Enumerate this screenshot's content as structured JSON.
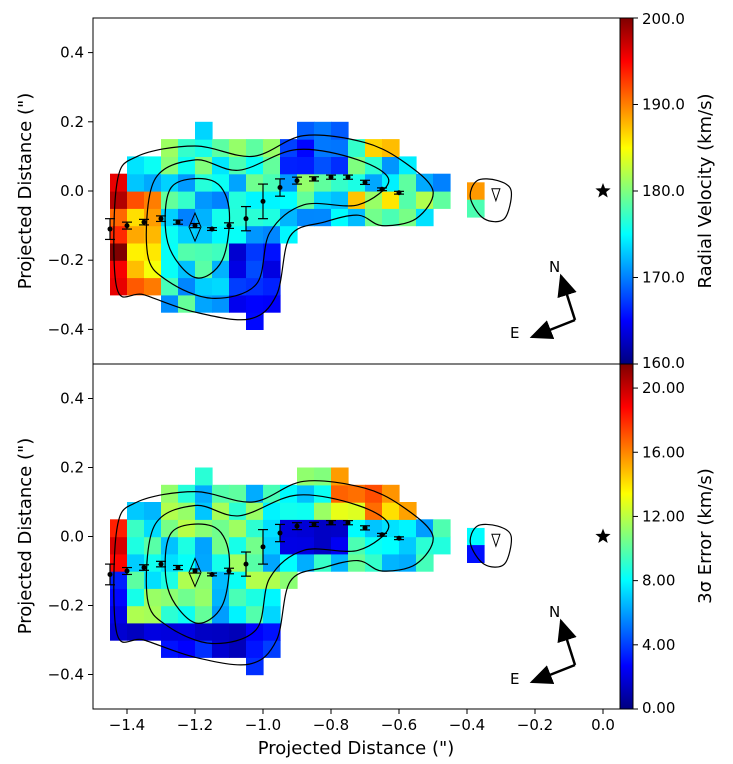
{
  "chart_data": [
    {
      "panel": "top",
      "type": "heatmap",
      "title": "",
      "ylabel": "Projected Distance (\")",
      "xlabel": "",
      "xlim": [
        -1.5,
        0.05
      ],
      "ylim": [
        -0.5,
        0.5
      ],
      "yticks": [
        "−0.4",
        "−0.2",
        "0.0",
        "0.2",
        "0.4"
      ],
      "ytick_values": [
        -0.4,
        -0.2,
        0.0,
        0.2,
        0.4
      ],
      "colorbar": {
        "label": "Radial Velocity (km/s)",
        "range": [
          160.0,
          200.0
        ],
        "ticks": [
          "160.0",
          "170.0",
          "180.0",
          "190.0",
          "200.0"
        ],
        "tick_values": [
          160,
          170,
          180,
          190,
          200
        ],
        "colormap": "jet"
      },
      "star": {
        "x": 0.0,
        "y": 0.0
      },
      "compass": {
        "north_label": "N",
        "east_label": "E"
      }
    },
    {
      "panel": "bottom",
      "type": "heatmap",
      "title": "",
      "ylabel": "Projected Distance (\")",
      "xlabel": "Projected Distance (\")",
      "xlim": [
        -1.5,
        0.05
      ],
      "ylim": [
        -0.5,
        0.5
      ],
      "xticks": [
        "−1.4",
        "−1.2",
        "−1.0",
        "−0.8",
        "−0.6",
        "−0.4",
        "−0.2",
        "0.0"
      ],
      "xtick_values": [
        -1.4,
        -1.2,
        -1.0,
        -0.8,
        -0.6,
        -0.4,
        -0.2,
        0.0
      ],
      "yticks": [
        "−0.4",
        "−0.2",
        "0.0",
        "0.2",
        "0.4"
      ],
      "ytick_values": [
        -0.4,
        -0.2,
        0.0,
        0.2,
        0.4
      ],
      "colorbar": {
        "label": "3σ Error (km/s)",
        "range": [
          0.0,
          21.5
        ],
        "ticks": [
          "0.00",
          "4.00",
          "8.00",
          "12.00",
          "16.00",
          "20.00"
        ],
        "tick_values": [
          0,
          4,
          8,
          12,
          16,
          20
        ],
        "colormap": "jet"
      },
      "star": {
        "x": 0.0,
        "y": 0.0
      },
      "compass": {
        "north_label": "N",
        "east_label": "E"
      }
    }
  ],
  "jet_colors": [
    "#00007f",
    "#0000ff",
    "#007fff",
    "#00ffff",
    "#7fff7f",
    "#ffff00",
    "#ff7f00",
    "#ff0000",
    "#7f0000"
  ],
  "jet_positions": [
    0,
    0.125,
    0.25,
    0.375,
    0.5,
    0.625,
    0.75,
    0.875,
    1.0
  ],
  "centroids": {
    "points": [
      {
        "x": -1.45,
        "y": -0.11,
        "err": 0.03
      },
      {
        "x": -1.4,
        "y": -0.1,
        "err": 0.01
      },
      {
        "x": -1.35,
        "y": -0.09,
        "err": 0.008
      },
      {
        "x": -1.3,
        "y": -0.08,
        "err": 0.008
      },
      {
        "x": -1.25,
        "y": -0.09,
        "err": 0.006
      },
      {
        "x": -1.2,
        "y": -0.1,
        "err": 0.006
      },
      {
        "x": -1.15,
        "y": -0.11,
        "err": 0.004
      },
      {
        "x": -1.1,
        "y": -0.1,
        "err": 0.008
      },
      {
        "x": -1.05,
        "y": -0.08,
        "err": 0.035
      },
      {
        "x": -1.0,
        "y": -0.03,
        "err": 0.05
      },
      {
        "x": -0.95,
        "y": 0.01,
        "err": 0.025
      },
      {
        "x": -0.9,
        "y": 0.03,
        "err": 0.01
      },
      {
        "x": -0.85,
        "y": 0.035,
        "err": 0.006
      },
      {
        "x": -0.8,
        "y": 0.04,
        "err": 0.006
      },
      {
        "x": -0.75,
        "y": 0.04,
        "err": 0.006
      },
      {
        "x": -0.7,
        "y": 0.025,
        "err": 0.006
      },
      {
        "x": -0.65,
        "y": 0.005,
        "err": 0.004
      },
      {
        "x": -0.6,
        "y": -0.005,
        "err": 0.004
      }
    ]
  },
  "maps": {
    "x0": -1.475,
    "y0": -0.375,
    "pixel": 0.05,
    "top_rows": [
      "....................",
      "..........###.......",
      ".......####.......................",
      "..........#####......",
      "...................."
    ]
  }
}
